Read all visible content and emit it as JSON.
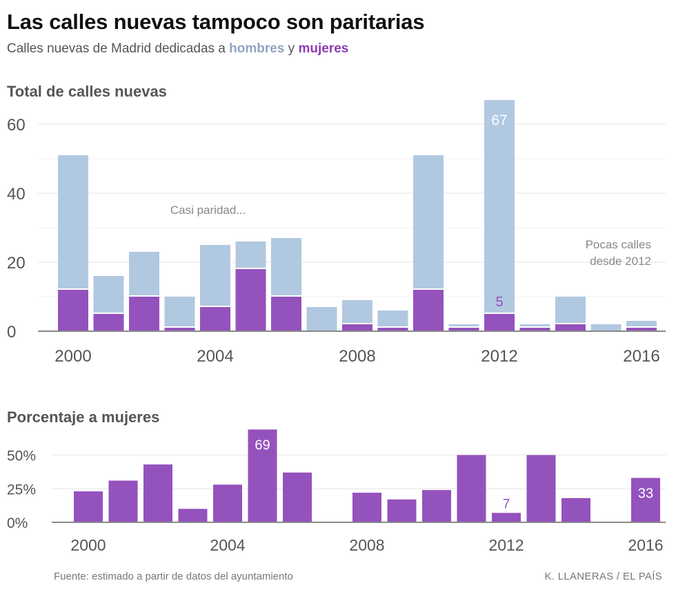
{
  "header": {
    "title": "Las calles nuevas tampoco son paritarias",
    "subtitle_prefix": "Calles nuevas de Madrid dedicadas a ",
    "subtitle_men": "hombres",
    "subtitle_mid": " y ",
    "subtitle_women": "mujeres"
  },
  "colors": {
    "men": "#b1c8e1",
    "women": "#9452bd",
    "axis": "#888888",
    "grid": "#e6e6e6"
  },
  "chart_data": [
    {
      "type": "bar",
      "stacked": true,
      "title": "Total de calles nuevas",
      "x": [
        2000,
        2001,
        2002,
        2003,
        2004,
        2005,
        2006,
        2007,
        2008,
        2009,
        2010,
        2011,
        2012,
        2013,
        2014,
        2015,
        2016
      ],
      "x_tick_labels": [
        "2000",
        "2004",
        "2008",
        "2012",
        "2016"
      ],
      "x_tick_values": [
        2000,
        2004,
        2008,
        2012,
        2016
      ],
      "y_tick_labels": [
        "0",
        "20",
        "40",
        "60"
      ],
      "y_tick_values": [
        0,
        20,
        40,
        60
      ],
      "ylim": [
        0,
        70
      ],
      "grid": true,
      "series": [
        {
          "name": "mujeres",
          "values": [
            12,
            5,
            10,
            1,
            7,
            18,
            10,
            0,
            2,
            1,
            12,
            1,
            5,
            1,
            2,
            0,
            1
          ]
        },
        {
          "name": "hombres",
          "values": [
            39,
            11,
            13,
            9,
            18,
            8,
            17,
            7,
            7,
            5,
            39,
            1,
            62,
            1,
            8,
            2,
            2
          ]
        }
      ],
      "data_labels": [
        {
          "x": 2012,
          "text": "67",
          "series": "total"
        },
        {
          "x": 2012,
          "text": "5",
          "series": "mujeres"
        }
      ],
      "annotations": [
        {
          "text": "Casi paridad...",
          "x": 2003.8,
          "y": 34
        },
        {
          "lines": [
            "Pocas calles",
            "desde 2012"
          ],
          "x": 2016.5,
          "y": 24
        }
      ]
    },
    {
      "type": "bar",
      "title": "Porcentaje a mujeres",
      "x": [
        2000,
        2001,
        2002,
        2003,
        2004,
        2005,
        2006,
        2008,
        2009,
        2010,
        2011,
        2012,
        2013,
        2014,
        2016
      ],
      "values": [
        23,
        31,
        43,
        10,
        28,
        69,
        37,
        22,
        17,
        24,
        50,
        7,
        50,
        18,
        33
      ],
      "x_tick_labels": [
        "2000",
        "2004",
        "2008",
        "2012",
        "2016"
      ],
      "x_tick_values": [
        2000,
        2004,
        2008,
        2012,
        2016
      ],
      "y_tick_labels": [
        "0%",
        "25%",
        "50%"
      ],
      "y_tick_values": [
        0,
        25,
        50
      ],
      "ylim": [
        0,
        70
      ],
      "data_labels": [
        {
          "x": 2005,
          "text": "69",
          "inside": true
        },
        {
          "x": 2012,
          "text": "7",
          "inside": false
        },
        {
          "x": 2016,
          "text": "33",
          "inside": true
        }
      ]
    }
  ],
  "footer": {
    "source": "Fuente: estimado a partir de datos del ayuntamiento",
    "credit": "K. LLANERAS / EL PAÍS"
  }
}
